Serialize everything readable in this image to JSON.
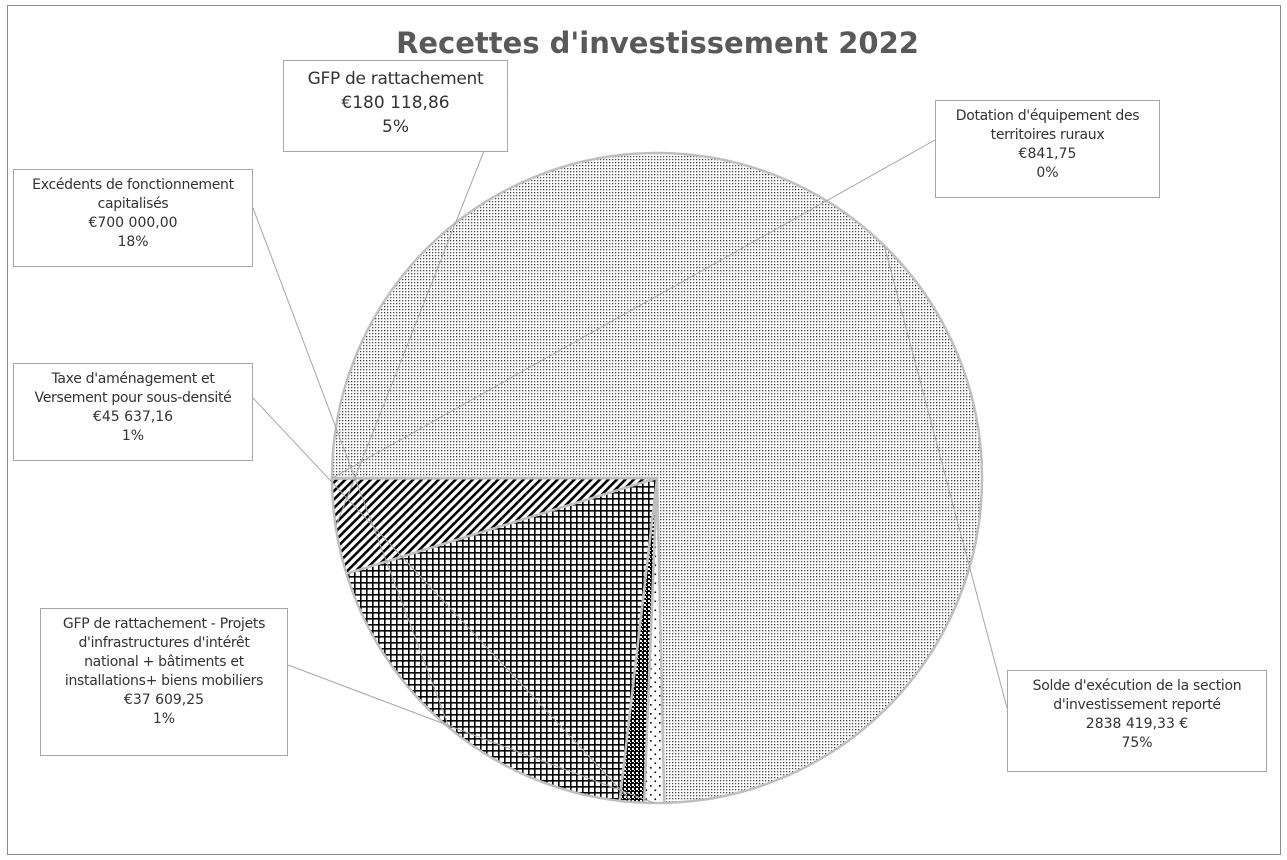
{
  "chart_data": {
    "type": "pie",
    "title": "Recettes d'investissement 2022",
    "slices": [
      {
        "name": "Solde d'exécution de la section\nd'investissement reporté",
        "value_label": "2838 419,33 €",
        "percent_label": "75%",
        "value": 2838419.33,
        "pattern": "fine-dots"
      },
      {
        "name": "GFP de rattachement - Projets\nd'infrastructures d'intérêt\nnational + bâtiments et\ninstallations+ biens mobiliers",
        "value_label": "€37 609,25",
        "percent_label": "1%",
        "value": 37609.25,
        "pattern": "sparse-dots"
      },
      {
        "name": "Taxe d'aménagement et\nVersement pour sous-densité",
        "value_label": "€45 637,16",
        "percent_label": "1%",
        "value": 45637.16,
        "pattern": "black-checker"
      },
      {
        "name": "Excédents de fonctionnement\ncapitalisés",
        "value_label": "€700 000,00",
        "percent_label": "18%",
        "value": 700000.0,
        "pattern": "grid"
      },
      {
        "name": "GFP de rattachement",
        "value_label": "€180  118,86",
        "percent_label": "5%",
        "value": 180118.86,
        "pattern": "diagonal"
      },
      {
        "name": "Dotation d'équipement des\nterritoires ruraux",
        "value_label": "€841,75",
        "percent_label": "0%",
        "value": 841.75,
        "pattern": "diagonal"
      }
    ],
    "legend": "none",
    "colors": {
      "title": "#595959",
      "text": "#333333",
      "leader": "#a6a6a6",
      "border": "#8c8c8c"
    }
  }
}
